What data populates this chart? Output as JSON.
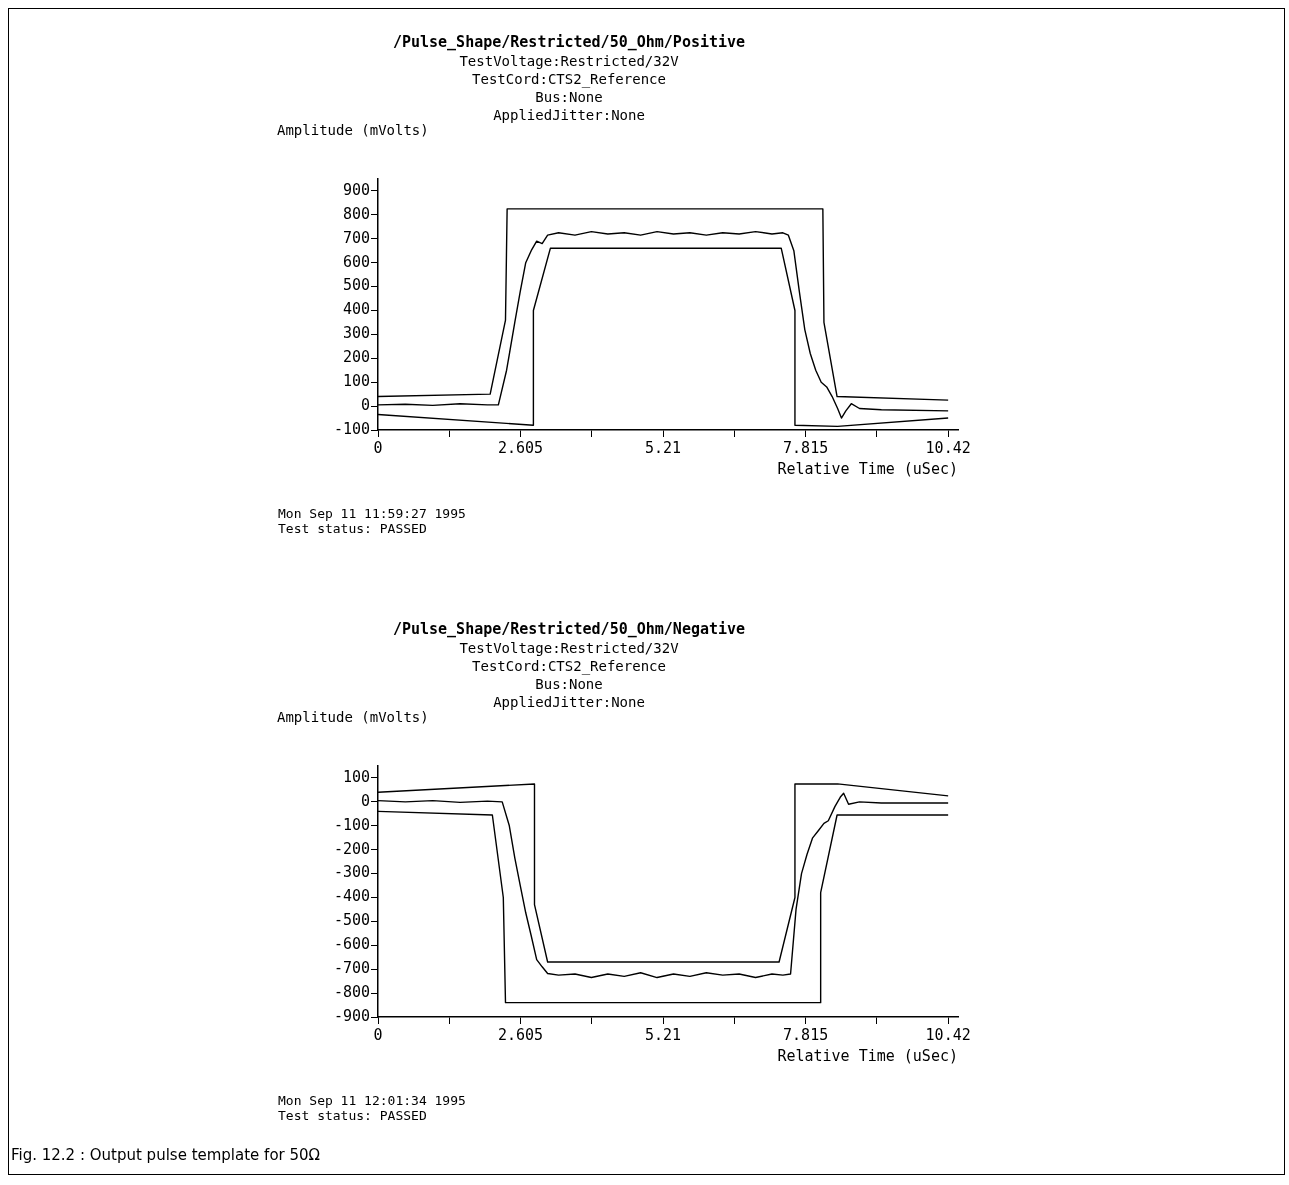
{
  "chart_data": [
    {
      "type": "line",
      "title": "/Pulse_Shape/Restricted/50_Ohm/Positive",
      "subtitle": "TestVoltage:Restricted/32V\nTestCord:CTS2_Reference\nBus:None\nAppliedJitter:None",
      "xlabel": "Relative Time (uSec)",
      "ylabel": "Amplitude (mVolts)",
      "annotations": [
        "Mon Sep 11 11:59:27 1995",
        "Test status: PASSED"
      ],
      "xlim": [
        0,
        10.6
      ],
      "xticks": [
        0,
        {
          "value": 1.3025,
          "label": null
        },
        2.605,
        {
          "value": 3.9075,
          "label": null
        },
        5.21,
        {
          "value": 6.5125,
          "label": null
        },
        7.815,
        {
          "value": 9.1175,
          "label": null
        },
        10.42
      ],
      "ylim": [
        -100,
        950
      ],
      "yticks": [
        -100,
        0,
        100,
        200,
        300,
        400,
        500,
        600,
        700,
        800,
        900
      ],
      "legend": false,
      "marker": "none",
      "line_style": "solid",
      "series": [
        {
          "color": "#000000",
          "x": [
            0,
            2.05,
            2.33,
            2.36,
            8.13,
            8.15,
            8.39,
            10.42
          ],
          "values": [
            40,
            50,
            360,
            825,
            825,
            350,
            40,
            25
          ]
        },
        {
          "color": "#000000",
          "x": [
            0,
            2.84,
            2.84,
            3.15,
            7.37,
            7.62,
            7.62,
            8.4,
            10.42
          ],
          "values": [
            -35,
            -80,
            400,
            660,
            660,
            400,
            -80,
            -85,
            -50
          ]
        },
        {
          "color": "#000000",
          "x": [
            0,
            0.5,
            1,
            1.5,
            2,
            2.2,
            2.35,
            2.5,
            2.6,
            2.7,
            2.8,
            2.9,
            3.0,
            3.1,
            3.3,
            3.6,
            3.9,
            4.2,
            4.5,
            4.8,
            5.1,
            5.4,
            5.7,
            6.0,
            6.3,
            6.6,
            6.9,
            7.2,
            7.4,
            7.5,
            7.6,
            7.7,
            7.8,
            7.9,
            8.0,
            8.1,
            8.2,
            8.3,
            8.4,
            8.47,
            8.55,
            8.65,
            8.8,
            9.2,
            10.42
          ],
          "values": [
            5,
            8,
            3,
            10,
            5,
            5,
            150,
            350,
            480,
            600,
            650,
            690,
            680,
            715,
            725,
            715,
            730,
            720,
            725,
            715,
            730,
            720,
            725,
            715,
            725,
            720,
            730,
            720,
            725,
            715,
            650,
            480,
            320,
            220,
            150,
            100,
            80,
            40,
            -10,
            -50,
            -20,
            10,
            -10,
            -15,
            -20
          ]
        }
      ]
    },
    {
      "type": "line",
      "title": "/Pulse_Shape/Restricted/50_Ohm/Negative",
      "subtitle": "TestVoltage:Restricted/32V\nTestCord:CTS2_Reference\nBus:None\nAppliedJitter:None",
      "xlabel": "Relative Time (uSec)",
      "ylabel": "Amplitude (mVolts)",
      "annotations": [
        "Mon Sep 11 12:01:34 1995",
        "Test status: PASSED",
        "Fig. 12.2 : Output pulse template for 50Ω"
      ],
      "xlim": [
        0,
        10.6
      ],
      "xticks": [
        0,
        {
          "value": 1.3025,
          "label": null
        },
        2.605,
        {
          "value": 3.9075,
          "label": null
        },
        5.21,
        {
          "value": 6.5125,
          "label": null
        },
        7.815,
        {
          "value": 9.1175,
          "label": null
        },
        10.42
      ],
      "ylim": [
        -900,
        150
      ],
      "yticks": [
        -900,
        -800,
        -700,
        -600,
        -500,
        -400,
        -300,
        -200,
        -100,
        0,
        100
      ],
      "legend": false,
      "marker": "none",
      "line_style": "solid",
      "series": [
        {
          "color": "#000000",
          "x": [
            0,
            2.86,
            2.86,
            3.1,
            7.33,
            7.62,
            7.62,
            8.4,
            10.42
          ],
          "values": [
            40,
            75,
            -430,
            -670,
            -670,
            -400,
            75,
            75,
            25
          ]
        },
        {
          "color": "#000000",
          "x": [
            0,
            2.09,
            2.29,
            2.33,
            8.09,
            8.09,
            8.39,
            10.42
          ],
          "values": [
            -40,
            -55,
            -400,
            -840,
            -840,
            -380,
            -55,
            -55
          ]
        },
        {
          "color": "#000000",
          "x": [
            0,
            0.5,
            1,
            1.5,
            2,
            2.27,
            2.4,
            2.5,
            2.6,
            2.7,
            2.8,
            2.9,
            3.0,
            3.1,
            3.3,
            3.6,
            3.9,
            4.2,
            4.5,
            4.8,
            5.1,
            5.4,
            5.7,
            6.0,
            6.3,
            6.6,
            6.9,
            7.2,
            7.4,
            7.54,
            7.64,
            7.74,
            7.84,
            7.94,
            8.05,
            8.15,
            8.23,
            8.35,
            8.45,
            8.51,
            8.6,
            8.8,
            9.2,
            10.42
          ],
          "values": [
            5,
            0,
            5,
            -2,
            3,
            0,
            -100,
            -234,
            -350,
            -464,
            -560,
            -660,
            -690,
            -718,
            -725,
            -720,
            -735,
            -720,
            -730,
            -715,
            -735,
            -720,
            -730,
            -715,
            -725,
            -720,
            -735,
            -720,
            -725,
            -720,
            -450,
            -300,
            -220,
            -152,
            -120,
            -90,
            -79,
            -20,
            20,
            36,
            -10,
            0,
            -5,
            -5
          ]
        }
      ]
    }
  ]
}
